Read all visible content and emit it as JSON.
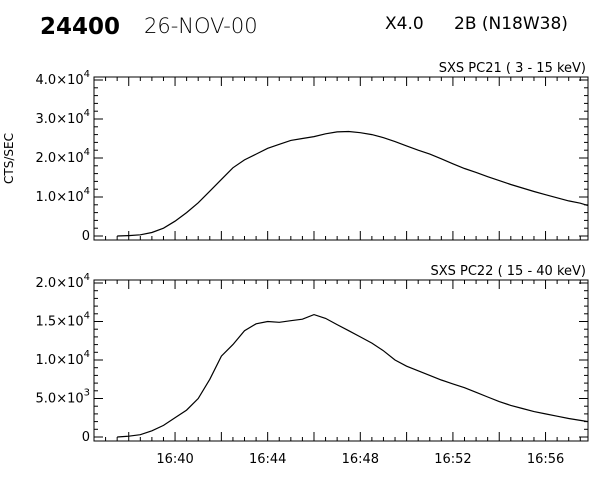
{
  "header": {
    "event_number": "24400",
    "date": "26-NOV-00",
    "class": "X4.0",
    "flare": "2B (N18W38)"
  },
  "chart_data": [
    {
      "type": "line",
      "title": "SXS PC21  (  3 - 15 keV)",
      "ylabel": "CTS/SEC",
      "xlabel": "",
      "xlim": [
        "16:36:30",
        "16:57:50"
      ],
      "ylim": [
        0,
        40000
      ],
      "yticks": [
        {
          "value": 0,
          "mantissa": "0",
          "exp": ""
        },
        {
          "value": 10000,
          "mantissa": "1.0×10",
          "exp": "4"
        },
        {
          "value": 20000,
          "mantissa": "2.0×10",
          "exp": "4"
        },
        {
          "value": 30000,
          "mantissa": "3.0×10",
          "exp": "4"
        },
        {
          "value": 40000,
          "mantissa": "4.0×10",
          "exp": "4"
        }
      ],
      "xticks": [],
      "series": [
        {
          "color": "#000000",
          "x": [
            "16:37:30",
            "16:38:00",
            "16:38:30",
            "16:39:00",
            "16:39:30",
            "16:40:00",
            "16:40:30",
            "16:41:00",
            "16:41:30",
            "16:42:00",
            "16:42:30",
            "16:43:00",
            "16:43:30",
            "16:44:00",
            "16:44:30",
            "16:45:00",
            "16:45:30",
            "16:46:00",
            "16:46:30",
            "16:47:00",
            "16:47:30",
            "16:48:00",
            "16:48:30",
            "16:49:00",
            "16:49:30",
            "16:50:00",
            "16:50:30",
            "16:51:00",
            "16:51:30",
            "16:52:00",
            "16:52:30",
            "16:53:00",
            "16:53:30",
            "16:54:00",
            "16:54:30",
            "16:55:00",
            "16:55:30",
            "16:56:00",
            "16:56:30",
            "16:57:00",
            "16:57:30",
            "16:57:50"
          ],
          "values": [
            0,
            100,
            300,
            900,
            2000,
            3800,
            6000,
            8500,
            11500,
            14500,
            17500,
            19500,
            21000,
            22500,
            23500,
            24500,
            25000,
            25500,
            26200,
            26700,
            26800,
            26500,
            26000,
            25200,
            24200,
            23100,
            22000,
            21000,
            19800,
            18500,
            17300,
            16300,
            15200,
            14200,
            13200,
            12300,
            11400,
            10600,
            9800,
            9000,
            8400,
            7800
          ]
        }
      ]
    },
    {
      "type": "line",
      "title": "SXS PC22  ( 15 - 40 keV)",
      "ylabel": "",
      "xlabel": "",
      "xlim": [
        "16:36:30",
        "16:57:50"
      ],
      "ylim": [
        0,
        20000
      ],
      "yticks": [
        {
          "value": 0,
          "mantissa": "0",
          "exp": ""
        },
        {
          "value": 5000,
          "mantissa": "5.0×10",
          "exp": "3"
        },
        {
          "value": 10000,
          "mantissa": "1.0×10",
          "exp": "4"
        },
        {
          "value": 15000,
          "mantissa": "1.5×10",
          "exp": "4"
        },
        {
          "value": 20000,
          "mantissa": "2.0×10",
          "exp": "4"
        }
      ],
      "xticks": [
        "16:40",
        "16:44",
        "16:48",
        "16:52",
        "16:56"
      ],
      "series": [
        {
          "color": "#000000",
          "x": [
            "16:37:30",
            "16:38:00",
            "16:38:30",
            "16:39:00",
            "16:39:30",
            "16:40:00",
            "16:40:30",
            "16:41:00",
            "16:41:30",
            "16:42:00",
            "16:42:30",
            "16:43:00",
            "16:43:30",
            "16:44:00",
            "16:44:30",
            "16:45:00",
            "16:45:30",
            "16:46:00",
            "16:46:30",
            "16:47:00",
            "16:47:30",
            "16:48:00",
            "16:48:30",
            "16:49:00",
            "16:49:30",
            "16:50:00",
            "16:50:30",
            "16:51:00",
            "16:51:30",
            "16:52:00",
            "16:52:30",
            "16:53:00",
            "16:53:30",
            "16:54:00",
            "16:54:30",
            "16:55:00",
            "16:55:30",
            "16:56:00",
            "16:56:30",
            "16:57:00",
            "16:57:30",
            "16:57:50"
          ],
          "values": [
            0,
            100,
            300,
            800,
            1500,
            2500,
            3500,
            5000,
            7500,
            10500,
            12000,
            13800,
            14700,
            15000,
            14900,
            15100,
            15300,
            15900,
            15400,
            14600,
            13800,
            13000,
            12200,
            11200,
            10000,
            9200,
            8600,
            8000,
            7400,
            6900,
            6400,
            5800,
            5200,
            4600,
            4100,
            3700,
            3300,
            3000,
            2700,
            2400,
            2150,
            2000
          ]
        }
      ]
    }
  ]
}
